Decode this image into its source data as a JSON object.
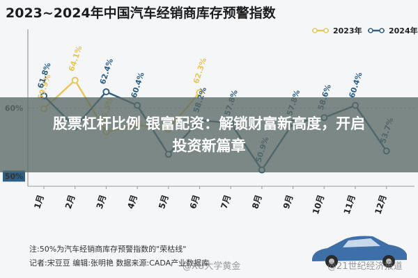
{
  "title": "2023~2024年中国汽车经销商库存预警指数",
  "chart_data": {
    "type": "line",
    "categories": [
      "1月",
      "2月",
      "3月",
      "4月",
      "5月",
      "6月",
      "7月",
      "8月",
      "9月",
      "10月",
      "11月",
      "12月"
    ],
    "series": [
      {
        "name": "2023年",
        "color": "#e8c65a",
        "values": [
          59.9,
          64.1,
          56.5,
          57.5,
          56.9,
          62.3,
          null,
          null,
          null,
          null,
          null,
          null
        ],
        "labels": [
          "59.9%",
          "64.1%",
          "56.5%",
          "",
          "",
          "62.3%",
          "",
          "",
          "",
          "",
          "",
          ""
        ]
      },
      {
        "name": "2024年",
        "color": "#2d5f86",
        "values": [
          61.8,
          57.2,
          62.4,
          60.4,
          53.2,
          58.2,
          57.8,
          50.9,
          57.8,
          58.6,
          60.4,
          53.7
        ],
        "labels": [
          "61.8%",
          "",
          "62.4%",
          "60.4%",
          "",
          "58.2%",
          "57.8%",
          "50.9%",
          "57.8%",
          "58.6%",
          "60.4%",
          "53.7%"
        ]
      }
    ],
    "yticks": [
      "60%",
      "50%"
    ],
    "ylim": [
      48.5,
      66.5
    ],
    "reference_line": 50,
    "legend_position": "top-right"
  },
  "overlay": {
    "line1": "股票杠杆比例 银富配资：解锁财富新高度，开启",
    "line2": "投资新篇章"
  },
  "notes": {
    "note1": "注:50%为汽车经销商库存预警指数的\"荣枯线\"",
    "note2": "记者:宋豆豆   编辑:张明艳   数据来源:CADA产业数据库"
  },
  "watermarks": {
    "left": "@XU大学黄金",
    "right": "@21世纪经济报道"
  }
}
